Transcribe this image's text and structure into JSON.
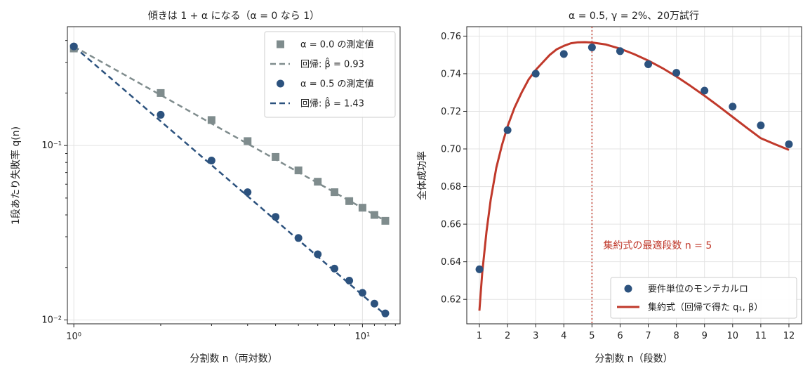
{
  "colors": {
    "grey": "#7f8c8d",
    "navy": "#2c527e",
    "red": "#c0392b",
    "grid": "#e3e3e3"
  },
  "chart_data": [
    {
      "type": "scatter",
      "title": "傾きは 1 + α になる（α = 0 なら 1）",
      "xlabel": "分割数 n（両対数）",
      "ylabel": "1段あたり失敗率 q(n)",
      "xscale": "log",
      "yscale": "log",
      "xlim": [
        0.95,
        13.5
      ],
      "ylim": [
        0.0095,
        0.48
      ],
      "x_ticks": [
        {
          "v": 1,
          "label": "10⁰"
        },
        {
          "v": 10,
          "label": "10¹"
        }
      ],
      "y_ticks": [
        {
          "v": 0.01,
          "label": "10⁻²"
        },
        {
          "v": 0.1,
          "label": "10⁻¹"
        }
      ],
      "grid": true,
      "legend_position": "top-right",
      "series": [
        {
          "name": "α = 0.0 の測定値",
          "kind": "markers",
          "marker": "square",
          "color": "#7f8c8d",
          "x": [
            1,
            2,
            3,
            4,
            5,
            6,
            7,
            8,
            9,
            10,
            11,
            12
          ],
          "y": [
            0.36,
            0.2,
            0.14,
            0.106,
            0.086,
            0.072,
            0.062,
            0.054,
            0.048,
            0.044,
            0.04,
            0.037
          ]
        },
        {
          "name": "回帰: β̂ = 0.93",
          "kind": "line",
          "dash": true,
          "color": "#7f8c8d",
          "x": [
            1,
            12
          ],
          "y": [
            0.37,
            0.037
          ]
        },
        {
          "name": "α = 0.5 の測定値",
          "kind": "markers",
          "marker": "circle",
          "color": "#2c527e",
          "x": [
            1,
            2,
            3,
            4,
            5,
            6,
            7,
            8,
            9,
            10,
            11,
            12
          ],
          "y": [
            0.37,
            0.15,
            0.082,
            0.054,
            0.039,
            0.0295,
            0.0238,
            0.0197,
            0.0168,
            0.0143,
            0.0124,
            0.0109
          ]
        },
        {
          "name": "回帰: β̂ = 1.43",
          "kind": "line",
          "dash": true,
          "color": "#2c527e",
          "x": [
            1,
            12
          ],
          "y": [
            0.37,
            0.0107
          ]
        }
      ]
    },
    {
      "type": "scatter",
      "title": "α = 0.5, γ = 2%、20万試行",
      "xlabel": "分割数 n（段数）",
      "ylabel": "全体成功率",
      "xlim": [
        0.55,
        12.45
      ],
      "ylim": [
        0.607,
        0.765
      ],
      "x_ticks": [
        1,
        2,
        3,
        4,
        5,
        6,
        7,
        8,
        9,
        10,
        11,
        12
      ],
      "y_ticks": [
        0.62,
        0.64,
        0.66,
        0.68,
        0.7,
        0.72,
        0.74,
        0.76
      ],
      "grid": true,
      "legend_position": "bottom-right",
      "vline": {
        "x": 5,
        "color": "#c0392b"
      },
      "annotation": {
        "text": "集約式の最適段数 n = 5",
        "x": 5.4,
        "y": 0.647,
        "color": "#c0392b"
      },
      "series": [
        {
          "name": "要件単位のモンテカルロ",
          "kind": "markers",
          "marker": "circle",
          "color": "#2c527e",
          "x": [
            1,
            2,
            3,
            4,
            5,
            6,
            7,
            8,
            9,
            10,
            11,
            12
          ],
          "y": [
            0.636,
            0.71,
            0.74,
            0.7505,
            0.754,
            0.752,
            0.745,
            0.7405,
            0.731,
            0.7225,
            0.7125,
            0.7025
          ]
        },
        {
          "name": "集約式（回帰で得た q₁, β）",
          "kind": "line",
          "dash": false,
          "color": "#c0392b",
          "x": [
            1,
            1.1,
            1.25,
            1.4,
            1.6,
            1.8,
            2,
            2.25,
            2.5,
            2.75,
            3,
            3.25,
            3.5,
            3.75,
            4,
            4.25,
            4.5,
            4.75,
            5,
            5.5,
            6,
            6.5,
            7,
            7.5,
            8,
            8.5,
            9,
            9.5,
            10,
            10.5,
            11,
            11.5,
            12
          ],
          "y": [
            0.614,
            0.634,
            0.656,
            0.673,
            0.69,
            0.702,
            0.712,
            0.722,
            0.73,
            0.737,
            0.742,
            0.746,
            0.75,
            0.753,
            0.7548,
            0.7562,
            0.7567,
            0.7568,
            0.7566,
            0.7555,
            0.7533,
            0.7504,
            0.747,
            0.743,
            0.7385,
            0.7335,
            0.7283,
            0.7227,
            0.717,
            0.7113,
            0.7057,
            0.7025,
            0.6995
          ]
        }
      ]
    }
  ]
}
